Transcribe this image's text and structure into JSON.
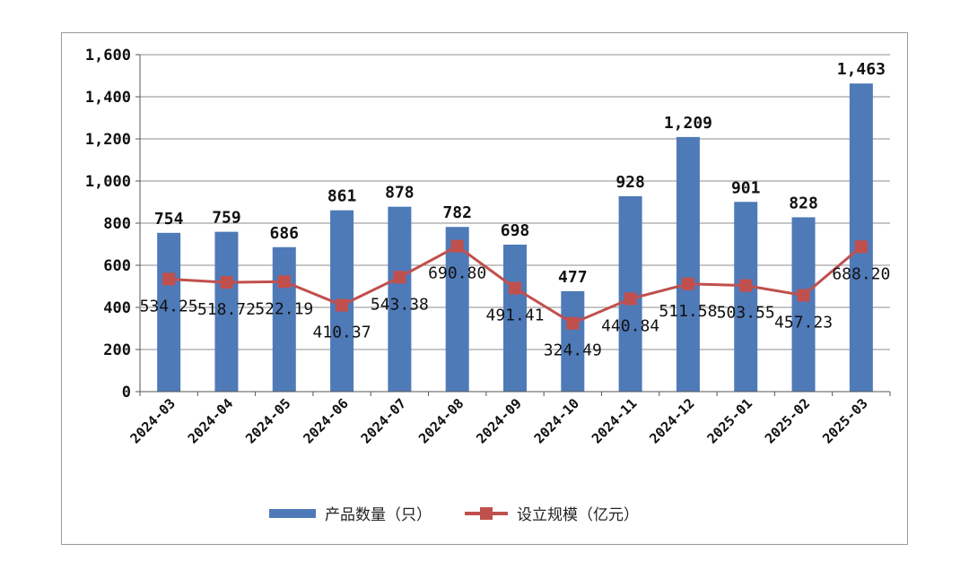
{
  "chart_data": {
    "type": "bar",
    "categories": [
      "2024-03",
      "2024-04",
      "2024-05",
      "2024-06",
      "2024-07",
      "2024-08",
      "2024-09",
      "2024-10",
      "2024-11",
      "2024-12",
      "2025-01",
      "2025-02",
      "2025-03"
    ],
    "series": [
      {
        "name": "产品数量（只）",
        "type": "bar",
        "color": "#4f7ab8",
        "values": [
          754,
          759,
          686,
          861,
          878,
          782,
          698,
          477,
          928,
          1209,
          901,
          828,
          1463
        ],
        "labels": [
          "754",
          "759",
          "686",
          "861",
          "878",
          "782",
          "698",
          "477",
          "928",
          "1,209",
          "901",
          "828",
          "1,463"
        ]
      },
      {
        "name": "设立规模（亿元）",
        "type": "line",
        "color": "#c0504d",
        "values": [
          534.25,
          518.72,
          522.19,
          410.37,
          543.38,
          690.8,
          491.41,
          324.49,
          440.84,
          511.58,
          503.55,
          457.23,
          688.2
        ],
        "labels": [
          "534.25",
          "518.72",
          "522.19",
          "410.37",
          "543.38",
          "690.80",
          "491.41",
          "324.49",
          "440.84",
          "511.58",
          "503.55",
          "457.23",
          "688.20"
        ]
      }
    ],
    "ylim": [
      0,
      1600
    ],
    "yticks": [
      0,
      200,
      400,
      600,
      800,
      1000,
      1200,
      1400,
      1600
    ],
    "ytick_labels": [
      "0",
      "200",
      "400",
      "600",
      "800",
      "1,000",
      "1,200",
      "1,400",
      "1,600"
    ],
    "grid": true,
    "legend_position": "bottom",
    "title": "",
    "xlabel": "",
    "ylabel": ""
  }
}
